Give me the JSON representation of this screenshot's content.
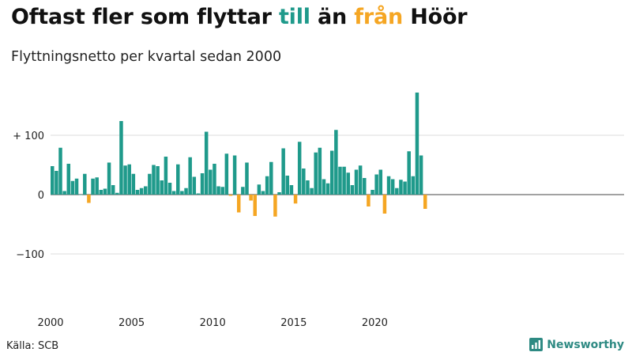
{
  "header": {
    "title_part1": "Oftast fler som flyttar",
    "title_word_in": "till",
    "title_mid": "än",
    "title_word_out": "från",
    "title_end": "Höör",
    "subtitle": "Flyttningsnetto per kvartal sedan 2000"
  },
  "footer": {
    "source": "Källa: SCB",
    "brand": "Newsworthy"
  },
  "colors": {
    "positive": "#1f9a8b",
    "negative": "#f5a623",
    "grid": "#dddddd",
    "zero_line": "#444444",
    "brand": "#2e8a83"
  },
  "chart_data": {
    "type": "bar",
    "x_start": "2000 Q1",
    "x_tick_labels": [
      "2000",
      "2005",
      "2010",
      "2015",
      "2020"
    ],
    "y_tick_labels": [
      "+ 100",
      "0",
      "−100"
    ],
    "y_ticks": [
      100,
      0,
      -100
    ],
    "ylim": [
      -190,
      175
    ],
    "grid": true,
    "series": [
      {
        "values": [
          48,
          40,
          79,
          6,
          52,
          23,
          27,
          0,
          35,
          -14,
          27,
          29,
          8,
          10,
          54,
          16,
          3,
          124,
          49,
          51,
          35,
          8,
          11,
          14,
          35,
          50,
          48,
          24,
          64,
          20,
          6,
          51,
          6,
          11,
          63,
          30,
          2,
          36,
          106,
          42,
          52,
          14,
          13,
          69,
          -2,
          66,
          -30,
          13,
          54,
          -10,
          -36,
          17,
          6,
          31,
          55,
          -37,
          4,
          78,
          32,
          16,
          -15,
          89,
          44,
          24,
          11,
          71,
          79,
          26,
          19,
          74,
          109,
          47,
          47,
          37,
          16,
          42,
          49,
          28,
          -20,
          8,
          34,
          42,
          -32,
          31,
          26,
          11,
          25,
          22,
          73,
          31,
          172,
          66,
          -24
        ]
      }
    ]
  }
}
